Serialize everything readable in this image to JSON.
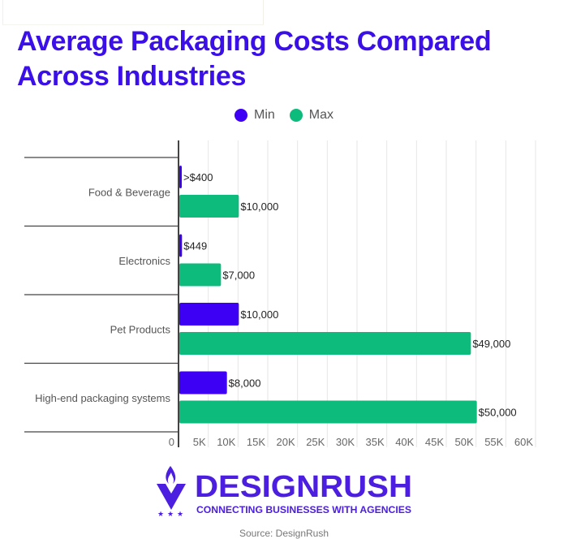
{
  "colors": {
    "title": "#3b10e8",
    "min": "#3d00f5",
    "max": "#0dbb7d",
    "brand": "#4b1ee0"
  },
  "brand": {
    "name": "DESIGNRUSH",
    "tagline": "CONNECTING BUSINESSES WITH AGENCIES"
  },
  "source": "Source: DesignRush",
  "chart_data": {
    "type": "bar",
    "orientation": "horizontal",
    "title": "Average Packaging Costs Compared Across Industries",
    "categories": [
      "Food & Beverage",
      "Electronics",
      "Pet Products",
      "High-end packaging systems"
    ],
    "series": [
      {
        "name": "Min",
        "values": [
          400,
          449,
          10000,
          8000
        ],
        "labels": [
          ">$400",
          "$449",
          "$10,000",
          "$8,000"
        ]
      },
      {
        "name": "Max",
        "values": [
          10000,
          7000,
          49000,
          50000
        ],
        "labels": [
          "$10,000",
          "$7,000",
          "$49,000",
          "$50,000"
        ]
      }
    ],
    "xlim": [
      0,
      60000
    ],
    "xticks": [
      0,
      5000,
      10000,
      15000,
      20000,
      25000,
      30000,
      35000,
      40000,
      45000,
      50000,
      55000,
      60000
    ],
    "xtick_labels": [
      "0",
      "5K",
      "10K",
      "15K",
      "20K",
      "25K",
      "30K",
      "35K",
      "40K",
      "45K",
      "50K",
      "55K",
      "60K"
    ],
    "xlabel": "",
    "ylabel": "",
    "legend": "top",
    "grid": true
  }
}
